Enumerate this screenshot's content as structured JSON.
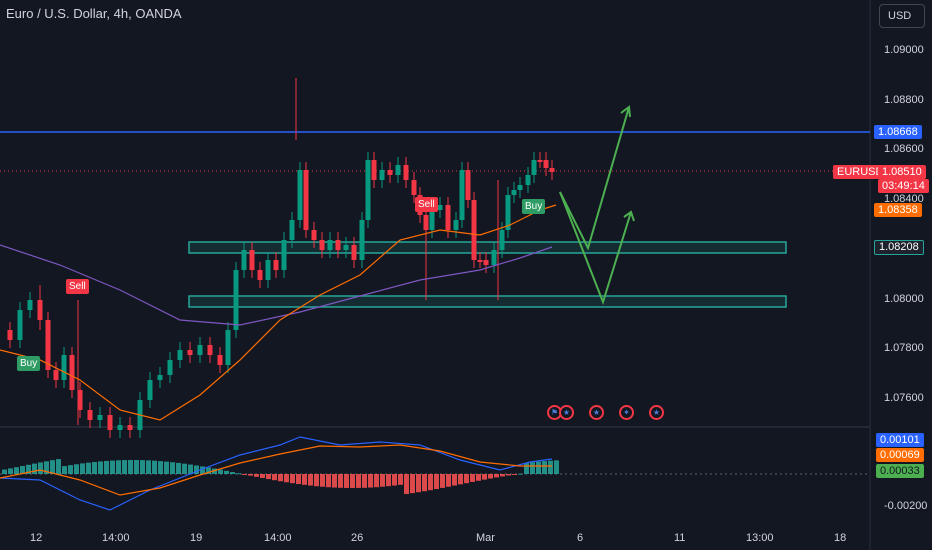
{
  "header": {
    "title": "Euro / U.S. Dollar, 4h, OANDA"
  },
  "currency_button": {
    "label": "USD"
  },
  "price_axis": {
    "labels": [
      "1.09000",
      "1.08800",
      "1.08600",
      "1.08400",
      "1.08000",
      "1.07800",
      "1.07600"
    ]
  },
  "price_badges": {
    "resistance": "1.08668",
    "symbol": "EURUSD",
    "last_price": "1.08510",
    "countdown": "03:49:14",
    "ema": "1.08358",
    "support": "1.08208"
  },
  "indicator_axis": {
    "macd": "0.00101",
    "signal": "0.00069",
    "hist": "0.00033",
    "low_label": "-0.00200"
  },
  "time_axis": {
    "labels": [
      "12",
      "14:00",
      "19",
      "14:00",
      "26",
      "Mar",
      "6",
      "11",
      "13:00",
      "18"
    ]
  },
  "signals": {
    "sell_1": "Sell",
    "buy_1": "Buy",
    "sell_2": "Sell",
    "buy_2": "Buy"
  },
  "events": [
    "flag-icon",
    "us-flag-icon",
    "us-flag-icon",
    "eu-flag-icon",
    "us-flag-icon"
  ],
  "colors": {
    "background": "#131722",
    "bull": "#089981",
    "bear": "#f23645",
    "resistance_line": "#2962ff",
    "zone_border": "#26a69a",
    "projection": "#4caf50",
    "ema_fast": "#ff6d00",
    "ema_slow": "#7e57c2"
  },
  "chart_data": {
    "type": "candlestick",
    "symbol": "EURUSD",
    "timeframe": "4h",
    "ylim": [
      1.0745,
      1.0915
    ],
    "horizontal_levels": [
      1.08668
    ],
    "support_zones": [
      [
        1.0818,
        1.0823
      ],
      [
        1.0797,
        1.0802
      ]
    ],
    "last_price": 1.0851
  }
}
